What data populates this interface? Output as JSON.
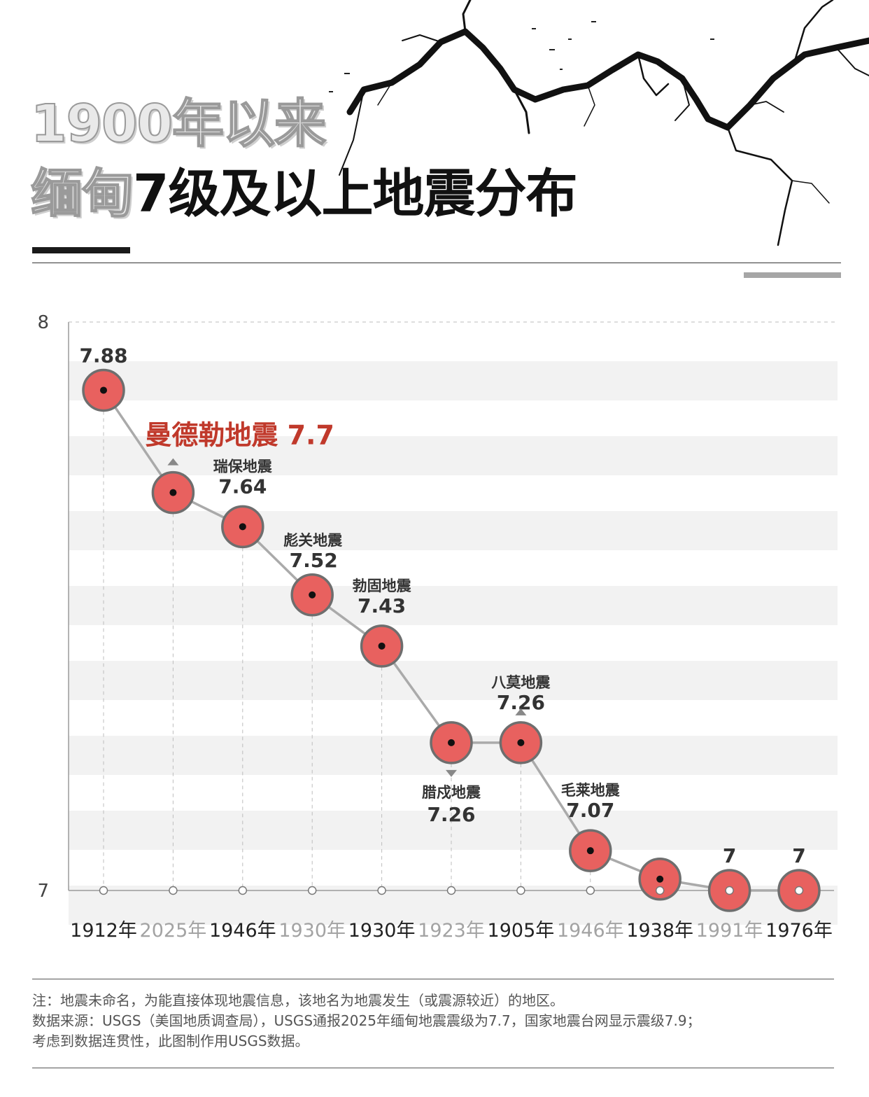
{
  "header": {
    "title_line_1": "1900年以来",
    "title_line_2_outline": "缅甸",
    "title_line_2_solid": "7级及以上地震分布"
  },
  "colors": {
    "marker_fill": "#e8615f",
    "marker_stroke": "#6e6e6e",
    "line": "#aaaaaa",
    "highlight_text": "#c0392b",
    "band": "#f2f2f2",
    "year_dark": "#222222",
    "year_light": "#a3a3a3"
  },
  "chart_data": {
    "type": "line",
    "ylim": [
      7,
      8
    ],
    "y_ticks": [
      "7",
      "8"
    ],
    "grid": false,
    "categories": [
      "1912年",
      "2025年",
      "1946年",
      "1930年",
      "1930年",
      "1923年",
      "1905年",
      "1946年",
      "1938年",
      "1991年",
      "1976年"
    ],
    "category_styles": [
      "dark",
      "light",
      "dark",
      "light",
      "dark",
      "light",
      "dark",
      "light",
      "dark",
      "light",
      "dark"
    ],
    "values": [
      7.88,
      7.7,
      7.64,
      7.52,
      7.43,
      7.26,
      7.26,
      7.07,
      7.02,
      7.0,
      7.0
    ],
    "annotations": [
      {
        "index": 0,
        "name": "",
        "value": "7.88",
        "pos": "above",
        "arrow": "none"
      },
      {
        "index": 1,
        "name": "曼德勒地震",
        "value": "7.7",
        "pos": "highlight",
        "arrow": "up"
      },
      {
        "index": 2,
        "name": "瑞保地震",
        "value": "7.64",
        "pos": "above",
        "arrow": "none"
      },
      {
        "index": 3,
        "name": "彪关地震",
        "value": "7.52",
        "pos": "above-right",
        "arrow": "none"
      },
      {
        "index": 4,
        "name": "勃固地震",
        "value": "7.43",
        "pos": "above",
        "arrow": "none"
      },
      {
        "index": 5,
        "name": "腊戍地震",
        "value": "7.26",
        "pos": "below",
        "arrow": "down"
      },
      {
        "index": 6,
        "name": "八莫地震",
        "value": "7.26",
        "pos": "above",
        "arrow": "up"
      },
      {
        "index": 7,
        "name": "毛莱地震",
        "value": "7.07",
        "pos": "above",
        "arrow": "none"
      },
      {
        "index": 8,
        "name": "",
        "value": "",
        "pos": "none",
        "arrow": "none"
      },
      {
        "index": 9,
        "name": "",
        "value": "7",
        "pos": "above",
        "arrow": "none"
      },
      {
        "index": 10,
        "name": "",
        "value": "7",
        "pos": "above",
        "arrow": "none"
      }
    ]
  },
  "footer": {
    "note": "注：地震未命名，为能直接体现地震信息，该地名为地震发生（或震源较近）的地区。",
    "source": "数据来源：USGS（美国地质调查局），USGS通报2025年缅甸地震震级为7.7，国家地震台网显示震级7.9；",
    "remark": "考虑到数据连贯性，此图制作用USGS数据。"
  }
}
